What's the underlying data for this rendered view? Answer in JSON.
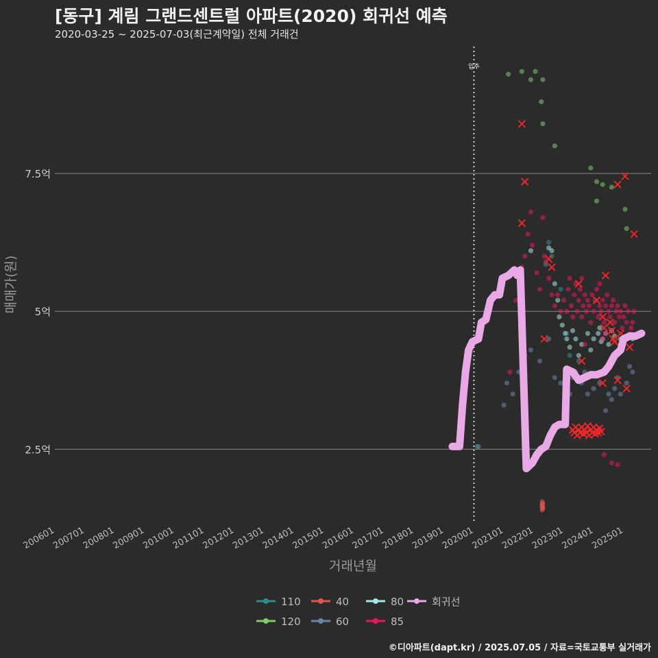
{
  "title": "[동구] 계림 그랜드센트럴 아파트(2020) 회귀선 예측",
  "subtitle": "2020-03-25 ~ 2025-07-03(최근계약일) 전체 거래건",
  "caption": "©디아파트(dapt.kr) / 2025.07.05 / 자료=국토교통부 실거래가",
  "chart_data": {
    "type": "scatter",
    "xlabel": "거래년월",
    "ylabel": "매매가(원)",
    "xlim": [
      2006.0,
      2025.92
    ],
    "ylim": [
      1.2,
      9.8
    ],
    "x_ticks": [
      {
        "v": 2006.0,
        "label": "200601"
      },
      {
        "v": 2007.0,
        "label": "200701"
      },
      {
        "v": 2008.0,
        "label": "200801"
      },
      {
        "v": 2009.0,
        "label": "200901"
      },
      {
        "v": 2010.0,
        "label": "201001"
      },
      {
        "v": 2011.0,
        "label": "201101"
      },
      {
        "v": 2012.0,
        "label": "201201"
      },
      {
        "v": 2013.0,
        "label": "201301"
      },
      {
        "v": 2014.0,
        "label": "201401"
      },
      {
        "v": 2015.0,
        "label": "201501"
      },
      {
        "v": 2016.0,
        "label": "201601"
      },
      {
        "v": 2017.0,
        "label": "201701"
      },
      {
        "v": 2018.0,
        "label": "201801"
      },
      {
        "v": 2019.0,
        "label": "201901"
      },
      {
        "v": 2020.0,
        "label": "202001"
      },
      {
        "v": 2021.0,
        "label": "202101"
      },
      {
        "v": 2022.0,
        "label": "202201"
      },
      {
        "v": 2023.0,
        "label": "202301"
      },
      {
        "v": 2024.0,
        "label": "202401"
      },
      {
        "v": 2025.0,
        "label": "202501"
      }
    ],
    "y_ticks": [
      {
        "v": 2.5,
        "label": "2.5억"
      },
      {
        "v": 5.0,
        "label": "5억"
      },
      {
        "v": 7.5,
        "label": "7.5억"
      }
    ],
    "annotation": {
      "x": 2020.0,
      "label": "입주"
    },
    "legend": {
      "position": "bottom",
      "items": [
        {
          "label": "110",
          "color": "#2e8f8f"
        },
        {
          "label": "40",
          "color": "#e0564c"
        },
        {
          "label": "80",
          "color": "#a6e6e6"
        },
        {
          "label": "회귀선",
          "color": "#e8a9e6"
        },
        {
          "label": "120",
          "color": "#7ccc6a"
        },
        {
          "label": "60",
          "color": "#6b86a8"
        },
        {
          "label": "85",
          "color": "#e8185e"
        }
      ]
    },
    "series": [
      {
        "name": "120",
        "color": "#7ccc6a",
        "points": [
          [
            2021.15,
            9.3
          ],
          [
            2021.6,
            9.35
          ],
          [
            2021.9,
            9.2
          ],
          [
            2022.05,
            9.35
          ],
          [
            2022.3,
            9.2
          ],
          [
            2022.25,
            8.8
          ],
          [
            2022.3,
            8.4
          ],
          [
            2022.7,
            8.0
          ],
          [
            2023.9,
            7.6
          ],
          [
            2024.1,
            7.35
          ],
          [
            2024.3,
            7.3
          ],
          [
            2024.6,
            7.25
          ],
          [
            2024.1,
            7.0
          ],
          [
            2025.05,
            6.85
          ],
          [
            2025.1,
            6.5
          ]
        ]
      },
      {
        "name": "110",
        "color": "#2e8f8f",
        "points": [
          [
            2020.1,
            2.55
          ],
          [
            2022.5,
            6.25
          ],
          [
            2022.6,
            6.0
          ],
          [
            2022.4,
            5.85
          ],
          [
            2022.9,
            5.4
          ],
          [
            2023.1,
            4.6
          ],
          [
            2023.2,
            4.2
          ],
          [
            2023.5,
            4.1
          ]
        ]
      },
      {
        "name": "80",
        "color": "#a6e6e6",
        "points": [
          [
            2021.9,
            6.1
          ],
          [
            2022.5,
            6.15
          ],
          [
            2022.6,
            6.1
          ],
          [
            2022.7,
            5.5
          ],
          [
            2022.8,
            5.2
          ],
          [
            2022.85,
            4.9
          ],
          [
            2022.95,
            4.75
          ],
          [
            2023.05,
            4.6
          ],
          [
            2023.1,
            4.5
          ],
          [
            2023.2,
            4.35
          ],
          [
            2023.3,
            4.65
          ],
          [
            2023.4,
            4.5
          ],
          [
            2023.6,
            4.4
          ],
          [
            2023.8,
            4.6
          ],
          [
            2024.0,
            4.5
          ],
          [
            2024.2,
            4.7
          ],
          [
            2024.3,
            4.5
          ],
          [
            2024.4,
            4.6
          ],
          [
            2024.5,
            4.4
          ],
          [
            2024.6,
            4.65
          ],
          [
            2024.7,
            4.55
          ],
          [
            2024.9,
            4.5
          ],
          [
            2025.1,
            4.55
          ],
          [
            2025.3,
            4.5
          ],
          [
            2024.25,
            4.45
          ],
          [
            2023.5,
            4.2
          ],
          [
            2023.9,
            4.3
          ],
          [
            2024.15,
            4.6
          ]
        ]
      },
      {
        "name": "60",
        "color": "#6b86a8",
        "points": [
          [
            2021.0,
            3.3
          ],
          [
            2021.1,
            3.7
          ],
          [
            2021.3,
            3.5
          ],
          [
            2021.5,
            3.9
          ],
          [
            2021.7,
            4.2
          ],
          [
            2021.9,
            4.3
          ],
          [
            2022.2,
            4.1
          ],
          [
            2022.5,
            4.5
          ],
          [
            2022.7,
            3.8
          ],
          [
            2022.9,
            3.7
          ],
          [
            2023.05,
            3.6
          ],
          [
            2023.2,
            3.5
          ],
          [
            2023.4,
            3.9
          ],
          [
            2023.6,
            3.7
          ],
          [
            2023.8,
            3.5
          ],
          [
            2024.0,
            3.6
          ],
          [
            2024.2,
            3.7
          ],
          [
            2024.3,
            3.9
          ],
          [
            2024.5,
            3.5
          ],
          [
            2024.7,
            3.6
          ],
          [
            2024.9,
            3.5
          ],
          [
            2025.1,
            3.7
          ],
          [
            2025.3,
            3.9
          ],
          [
            2024.4,
            3.2
          ],
          [
            2025.2,
            4.0
          ],
          [
            2023.3,
            3.8
          ],
          [
            2023.7,
            3.9
          ],
          [
            2024.6,
            3.4
          ],
          [
            2024.8,
            3.8
          ],
          [
            2020.15,
            2.55
          ]
        ]
      },
      {
        "name": "40",
        "color": "#e0564c",
        "points": [
          [
            2022.28,
            1.55
          ],
          [
            2022.28,
            1.5
          ],
          [
            2022.28,
            1.45
          ],
          [
            2022.3,
            1.42
          ],
          [
            2022.28,
            1.4
          ],
          [
            2022.3,
            1.52
          ],
          [
            2022.28,
            1.48
          ],
          [
            2022.3,
            1.46
          ]
        ]
      },
      {
        "name": "85",
        "color": "#e8185e",
        "points": [
          [
            2021.2,
            3.9
          ],
          [
            2021.4,
            5.2
          ],
          [
            2021.5,
            5.6
          ],
          [
            2021.6,
            5.8
          ],
          [
            2021.7,
            6.0
          ],
          [
            2021.8,
            6.4
          ],
          [
            2021.9,
            6.8
          ],
          [
            2021.95,
            6.2
          ],
          [
            2022.1,
            5.7
          ],
          [
            2022.2,
            5.4
          ],
          [
            2022.3,
            6.7
          ],
          [
            2022.4,
            5.9
          ],
          [
            2022.5,
            5.6
          ],
          [
            2022.6,
            5.3
          ],
          [
            2022.7,
            5.1
          ],
          [
            2022.8,
            5.3
          ],
          [
            2022.9,
            5.0
          ],
          [
            2023.0,
            5.2
          ],
          [
            2023.1,
            5.0
          ],
          [
            2023.15,
            5.4
          ],
          [
            2023.2,
            5.6
          ],
          [
            2023.25,
            5.1
          ],
          [
            2023.3,
            4.9
          ],
          [
            2023.35,
            5.3
          ],
          [
            2023.4,
            5.5
          ],
          [
            2023.45,
            5.0
          ],
          [
            2023.5,
            5.2
          ],
          [
            2023.55,
            5.4
          ],
          [
            2023.6,
            4.9
          ],
          [
            2023.65,
            5.1
          ],
          [
            2023.7,
            5.3
          ],
          [
            2023.75,
            5.0
          ],
          [
            2023.8,
            5.2
          ],
          [
            2023.85,
            5.1
          ],
          [
            2023.9,
            4.8
          ],
          [
            2023.95,
            5.3
          ],
          [
            2024.0,
            5.0
          ],
          [
            2024.05,
            5.2
          ],
          [
            2024.1,
            5.4
          ],
          [
            2024.15,
            4.9
          ],
          [
            2024.2,
            5.1
          ],
          [
            2024.25,
            5.0
          ],
          [
            2024.3,
            5.2
          ],
          [
            2024.35,
            4.8
          ],
          [
            2024.4,
            5.1
          ],
          [
            2024.45,
            5.3
          ],
          [
            2024.5,
            5.0
          ],
          [
            2024.55,
            4.9
          ],
          [
            2024.6,
            5.1
          ],
          [
            2024.65,
            5.2
          ],
          [
            2024.7,
            4.8
          ],
          [
            2024.75,
            5.0
          ],
          [
            2024.8,
            5.1
          ],
          [
            2024.85,
            4.9
          ],
          [
            2024.9,
            5.0
          ],
          [
            2024.95,
            4.7
          ],
          [
            2025.0,
            4.9
          ],
          [
            2025.05,
            5.1
          ],
          [
            2025.1,
            4.8
          ],
          [
            2025.15,
            5.0
          ],
          [
            2025.2,
            4.6
          ],
          [
            2025.25,
            4.7
          ],
          [
            2025.3,
            4.8
          ],
          [
            2025.35,
            5.0
          ],
          [
            2024.4,
            4.6
          ],
          [
            2024.3,
            4.5
          ],
          [
            2023.7,
            4.4
          ],
          [
            2024.6,
            2.25
          ],
          [
            2024.8,
            2.22
          ],
          [
            2024.35,
            2.4
          ],
          [
            2022.35,
            6.0
          ],
          [
            2023.6,
            5.6
          ],
          [
            2024.2,
            5.5
          ]
        ]
      }
    ],
    "markers_x": [
      [
        2021.6,
        8.4
      ],
      [
        2021.7,
        7.35
      ],
      [
        2021.6,
        6.6
      ],
      [
        2022.5,
        5.95
      ],
      [
        2022.6,
        5.8
      ],
      [
        2023.5,
        5.5
      ],
      [
        2024.4,
        5.65
      ],
      [
        2024.8,
        7.3
      ],
      [
        2025.05,
        7.45
      ],
      [
        2025.35,
        6.4
      ],
      [
        2024.1,
        5.2
      ],
      [
        2024.3,
        4.9
      ],
      [
        2024.35,
        4.7
      ],
      [
        2024.55,
        4.8
      ],
      [
        2024.6,
        4.65
      ],
      [
        2024.65,
        4.5
      ],
      [
        2024.7,
        4.45
      ],
      [
        2024.9,
        4.6
      ],
      [
        2025.2,
        4.35
      ],
      [
        2024.8,
        3.75
      ],
      [
        2023.6,
        4.1
      ],
      [
        2022.35,
        4.5
      ],
      [
        2024.3,
        3.7
      ],
      [
        2025.1,
        3.6
      ],
      [
        2023.3,
        2.85
      ],
      [
        2023.35,
        2.8
      ],
      [
        2023.4,
        2.9
      ],
      [
        2023.45,
        2.75
      ],
      [
        2023.5,
        2.85
      ],
      [
        2023.55,
        2.8
      ],
      [
        2023.6,
        2.9
      ],
      [
        2023.65,
        2.78
      ],
      [
        2023.7,
        2.85
      ],
      [
        2023.75,
        2.8
      ],
      [
        2023.8,
        2.92
      ],
      [
        2023.85,
        2.75
      ],
      [
        2023.9,
        2.85
      ],
      [
        2023.95,
        2.8
      ],
      [
        2024.0,
        2.9
      ],
      [
        2024.05,
        2.78
      ],
      [
        2024.1,
        2.85
      ],
      [
        2024.15,
        2.8
      ],
      [
        2024.2,
        2.88
      ],
      [
        2024.25,
        2.82
      ]
    ],
    "regression": [
      [
        2019.28,
        2.55
      ],
      [
        2019.52,
        2.55
      ],
      [
        2019.62,
        3.3
      ],
      [
        2019.72,
        3.9
      ],
      [
        2019.82,
        4.3
      ],
      [
        2019.95,
        4.45
      ],
      [
        2020.15,
        4.5
      ],
      [
        2020.25,
        4.8
      ],
      [
        2020.4,
        4.85
      ],
      [
        2020.55,
        5.2
      ],
      [
        2020.7,
        5.3
      ],
      [
        2020.85,
        5.3
      ],
      [
        2020.95,
        5.6
      ],
      [
        2021.15,
        5.65
      ],
      [
        2021.35,
        5.75
      ],
      [
        2021.45,
        5.65
      ],
      [
        2021.55,
        5.75
      ],
      [
        2021.75,
        2.15
      ],
      [
        2021.95,
        2.25
      ],
      [
        2022.1,
        2.4
      ],
      [
        2022.25,
        2.5
      ],
      [
        2022.4,
        2.55
      ],
      [
        2022.55,
        2.75
      ],
      [
        2022.7,
        2.9
      ],
      [
        2022.85,
        2.95
      ],
      [
        2023.05,
        2.95
      ],
      [
        2023.1,
        3.95
      ],
      [
        2023.3,
        3.9
      ],
      [
        2023.5,
        3.75
      ],
      [
        2023.7,
        3.8
      ],
      [
        2023.9,
        3.85
      ],
      [
        2024.1,
        3.85
      ],
      [
        2024.35,
        3.9
      ],
      [
        2024.5,
        4.0
      ],
      [
        2024.7,
        4.2
      ],
      [
        2024.9,
        4.3
      ],
      [
        2025.0,
        4.5
      ],
      [
        2025.2,
        4.55
      ],
      [
        2025.4,
        4.55
      ],
      [
        2025.6,
        4.6
      ]
    ]
  }
}
